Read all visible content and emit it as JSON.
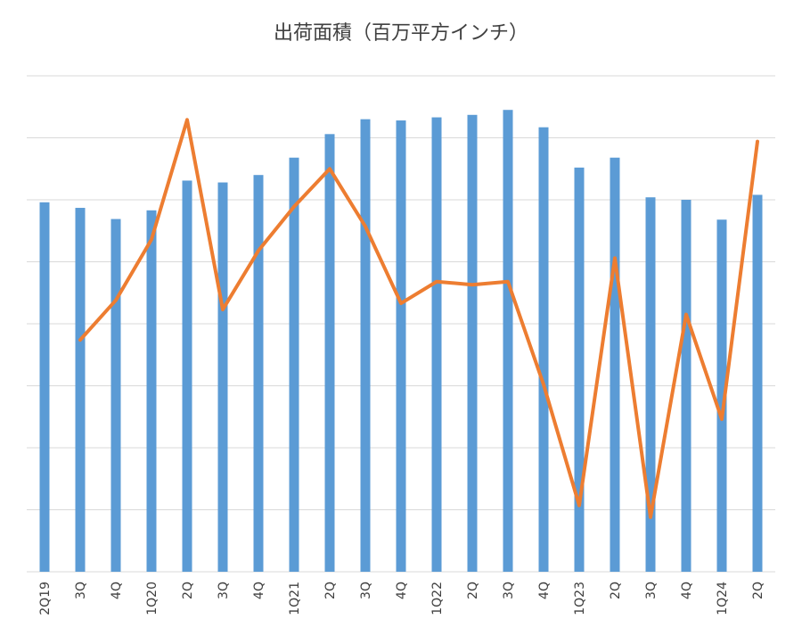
{
  "chart_data": {
    "type": "bar",
    "title": "出荷面積（百万平方インチ）",
    "xlabel": "",
    "ylabel": "",
    "categories": [
      "2Q19",
      "3Q",
      "4Q",
      "1Q20",
      "2Q",
      "3Q",
      "4Q",
      "1Q21",
      "2Q",
      "3Q",
      "4Q",
      "1Q22",
      "2Q",
      "3Q",
      "4Q",
      "1Q23",
      "2Q",
      "3Q",
      "4Q",
      "1Q24",
      "2Q"
    ],
    "series": [
      {
        "type": "bar",
        "color": "#5b9bd5",
        "values": [
          59.6,
          58.7,
          56.9,
          58.3,
          63.1,
          62.8,
          64.0,
          66.8,
          70.6,
          73.0,
          72.8,
          73.3,
          73.7,
          74.5,
          71.7,
          65.2,
          66.8,
          60.4,
          60.0,
          56.8,
          60.8
        ]
      },
      {
        "type": "line",
        "color": "#ed7d31",
        "values": [
          null,
          37.4,
          43.8,
          53.6,
          72.9,
          42.3,
          51.8,
          58.9,
          65.0,
          55.7,
          43.3,
          46.8,
          46.3,
          46.8,
          30.2,
          10.7,
          50.6,
          8.8,
          41.5,
          24.6,
          69.4
        ]
      }
    ],
    "ylim": [
      0,
      80
    ],
    "yticks": [
      0,
      10,
      20,
      30,
      40,
      50,
      60,
      70,
      80
    ],
    "ytick_labels_visible": false,
    "grid": true,
    "legend": "none"
  }
}
